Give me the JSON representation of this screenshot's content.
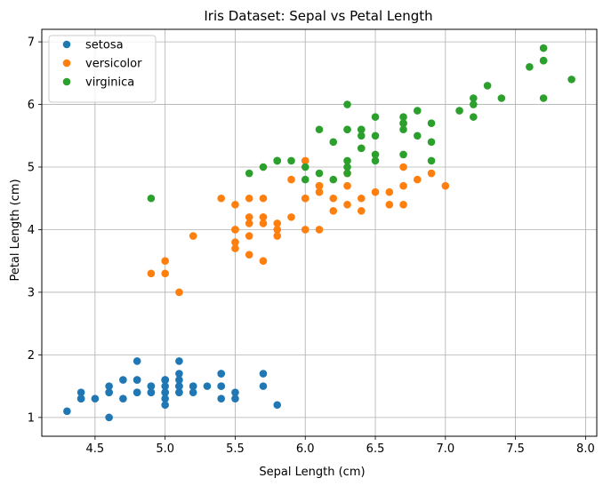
{
  "chart_data": {
    "type": "scatter",
    "title": "Iris Dataset: Sepal vs Petal Length",
    "xlabel": "Sepal Length (cm)",
    "ylabel": "Petal Length (cm)",
    "xlim": [
      4.12,
      8.08
    ],
    "ylim": [
      0.7,
      7.2
    ],
    "xticks": [
      4.5,
      5.0,
      5.5,
      6.0,
      6.5,
      7.0,
      7.5,
      8.0
    ],
    "xtick_labels": [
      "4.5",
      "5.0",
      "5.5",
      "6.0",
      "6.5",
      "7.0",
      "7.5",
      "8.0"
    ],
    "yticks": [
      1,
      2,
      3,
      4,
      5,
      6,
      7
    ],
    "ytick_labels": [
      "1",
      "2",
      "3",
      "4",
      "5",
      "6",
      "7"
    ],
    "grid": true,
    "legend": "top-left",
    "series": [
      {
        "name": "setosa",
        "color": "#1f77b4",
        "points": [
          [
            5.1,
            1.4
          ],
          [
            4.9,
            1.4
          ],
          [
            4.7,
            1.3
          ],
          [
            4.6,
            1.5
          ],
          [
            5.0,
            1.4
          ],
          [
            5.4,
            1.7
          ],
          [
            4.6,
            1.4
          ],
          [
            5.0,
            1.5
          ],
          [
            4.4,
            1.4
          ],
          [
            4.9,
            1.5
          ],
          [
            5.4,
            1.5
          ],
          [
            4.8,
            1.6
          ],
          [
            4.8,
            1.4
          ],
          [
            4.3,
            1.1
          ],
          [
            5.8,
            1.2
          ],
          [
            5.7,
            1.5
          ],
          [
            5.4,
            1.3
          ],
          [
            5.1,
            1.4
          ],
          [
            5.7,
            1.7
          ],
          [
            5.1,
            1.5
          ],
          [
            5.4,
            1.7
          ],
          [
            5.1,
            1.5
          ],
          [
            4.6,
            1.0
          ],
          [
            5.1,
            1.7
          ],
          [
            4.8,
            1.9
          ],
          [
            5.0,
            1.6
          ],
          [
            5.0,
            1.6
          ],
          [
            5.2,
            1.5
          ],
          [
            5.2,
            1.4
          ],
          [
            4.7,
            1.6
          ],
          [
            4.8,
            1.6
          ],
          [
            5.4,
            1.5
          ],
          [
            5.2,
            1.5
          ],
          [
            5.5,
            1.4
          ],
          [
            4.9,
            1.5
          ],
          [
            5.0,
            1.2
          ],
          [
            5.5,
            1.3
          ],
          [
            4.9,
            1.4
          ],
          [
            4.4,
            1.3
          ],
          [
            5.1,
            1.5
          ],
          [
            5.0,
            1.3
          ],
          [
            4.5,
            1.3
          ],
          [
            4.4,
            1.3
          ],
          [
            5.0,
            1.6
          ],
          [
            5.1,
            1.9
          ],
          [
            4.8,
            1.4
          ],
          [
            5.1,
            1.6
          ],
          [
            4.6,
            1.4
          ],
          [
            5.3,
            1.5
          ],
          [
            5.0,
            1.4
          ]
        ]
      },
      {
        "name": "versicolor",
        "color": "#ff7f0e",
        "points": [
          [
            7.0,
            4.7
          ],
          [
            6.4,
            4.5
          ],
          [
            6.9,
            4.9
          ],
          [
            5.5,
            4.0
          ],
          [
            6.5,
            4.6
          ],
          [
            5.7,
            4.5
          ],
          [
            6.3,
            4.7
          ],
          [
            4.9,
            3.3
          ],
          [
            6.6,
            4.6
          ],
          [
            5.2,
            3.9
          ],
          [
            5.0,
            3.5
          ],
          [
            5.9,
            4.2
          ],
          [
            6.0,
            4.0
          ],
          [
            6.1,
            4.7
          ],
          [
            5.6,
            3.6
          ],
          [
            6.7,
            4.4
          ],
          [
            5.6,
            4.5
          ],
          [
            5.8,
            4.1
          ],
          [
            6.2,
            4.5
          ],
          [
            5.6,
            3.9
          ],
          [
            5.9,
            4.8
          ],
          [
            6.1,
            4.0
          ],
          [
            6.3,
            4.9
          ],
          [
            6.1,
            4.7
          ],
          [
            6.4,
            4.3
          ],
          [
            6.6,
            4.4
          ],
          [
            6.8,
            4.8
          ],
          [
            6.7,
            5.0
          ],
          [
            6.0,
            4.5
          ],
          [
            5.7,
            3.5
          ],
          [
            5.5,
            3.8
          ],
          [
            5.5,
            3.7
          ],
          [
            5.8,
            3.9
          ],
          [
            6.0,
            5.1
          ],
          [
            5.4,
            4.5
          ],
          [
            6.0,
            4.5
          ],
          [
            6.7,
            4.7
          ],
          [
            6.3,
            4.4
          ],
          [
            5.6,
            4.1
          ],
          [
            5.5,
            4.0
          ],
          [
            5.5,
            4.4
          ],
          [
            6.1,
            4.6
          ],
          [
            5.8,
            4.0
          ],
          [
            5.0,
            3.3
          ],
          [
            5.6,
            4.2
          ],
          [
            5.7,
            4.2
          ],
          [
            5.7,
            4.2
          ],
          [
            6.2,
            4.3
          ],
          [
            5.1,
            3.0
          ],
          [
            5.7,
            4.1
          ]
        ]
      },
      {
        "name": "virginica",
        "color": "#2ca02c",
        "points": [
          [
            6.3,
            6.0
          ],
          [
            5.8,
            5.1
          ],
          [
            7.1,
            5.9
          ],
          [
            6.3,
            5.6
          ],
          [
            6.5,
            5.8
          ],
          [
            7.6,
            6.6
          ],
          [
            4.9,
            4.5
          ],
          [
            7.3,
            6.3
          ],
          [
            6.7,
            5.8
          ],
          [
            7.2,
            6.1
          ],
          [
            6.5,
            5.1
          ],
          [
            6.4,
            5.3
          ],
          [
            6.8,
            5.5
          ],
          [
            5.7,
            5.0
          ],
          [
            5.8,
            5.1
          ],
          [
            6.4,
            5.3
          ],
          [
            6.5,
            5.5
          ],
          [
            7.7,
            6.7
          ],
          [
            7.7,
            6.9
          ],
          [
            6.0,
            5.0
          ],
          [
            6.9,
            5.7
          ],
          [
            5.6,
            4.9
          ],
          [
            7.7,
            6.7
          ],
          [
            6.3,
            4.9
          ],
          [
            6.7,
            5.7
          ],
          [
            7.2,
            6.0
          ],
          [
            6.2,
            4.8
          ],
          [
            6.1,
            4.9
          ],
          [
            6.4,
            5.6
          ],
          [
            7.2,
            5.8
          ],
          [
            7.4,
            6.1
          ],
          [
            7.9,
            6.4
          ],
          [
            6.4,
            5.6
          ],
          [
            6.3,
            5.1
          ],
          [
            6.1,
            5.6
          ],
          [
            7.7,
            6.1
          ],
          [
            6.3,
            5.6
          ],
          [
            6.4,
            5.5
          ],
          [
            6.0,
            4.8
          ],
          [
            6.9,
            5.4
          ],
          [
            6.7,
            5.6
          ],
          [
            6.9,
            5.1
          ],
          [
            5.8,
            5.1
          ],
          [
            6.8,
            5.9
          ],
          [
            6.7,
            5.7
          ],
          [
            6.7,
            5.2
          ],
          [
            6.3,
            5.0
          ],
          [
            6.5,
            5.2
          ],
          [
            6.2,
            5.4
          ],
          [
            5.9,
            5.1
          ]
        ]
      }
    ]
  }
}
